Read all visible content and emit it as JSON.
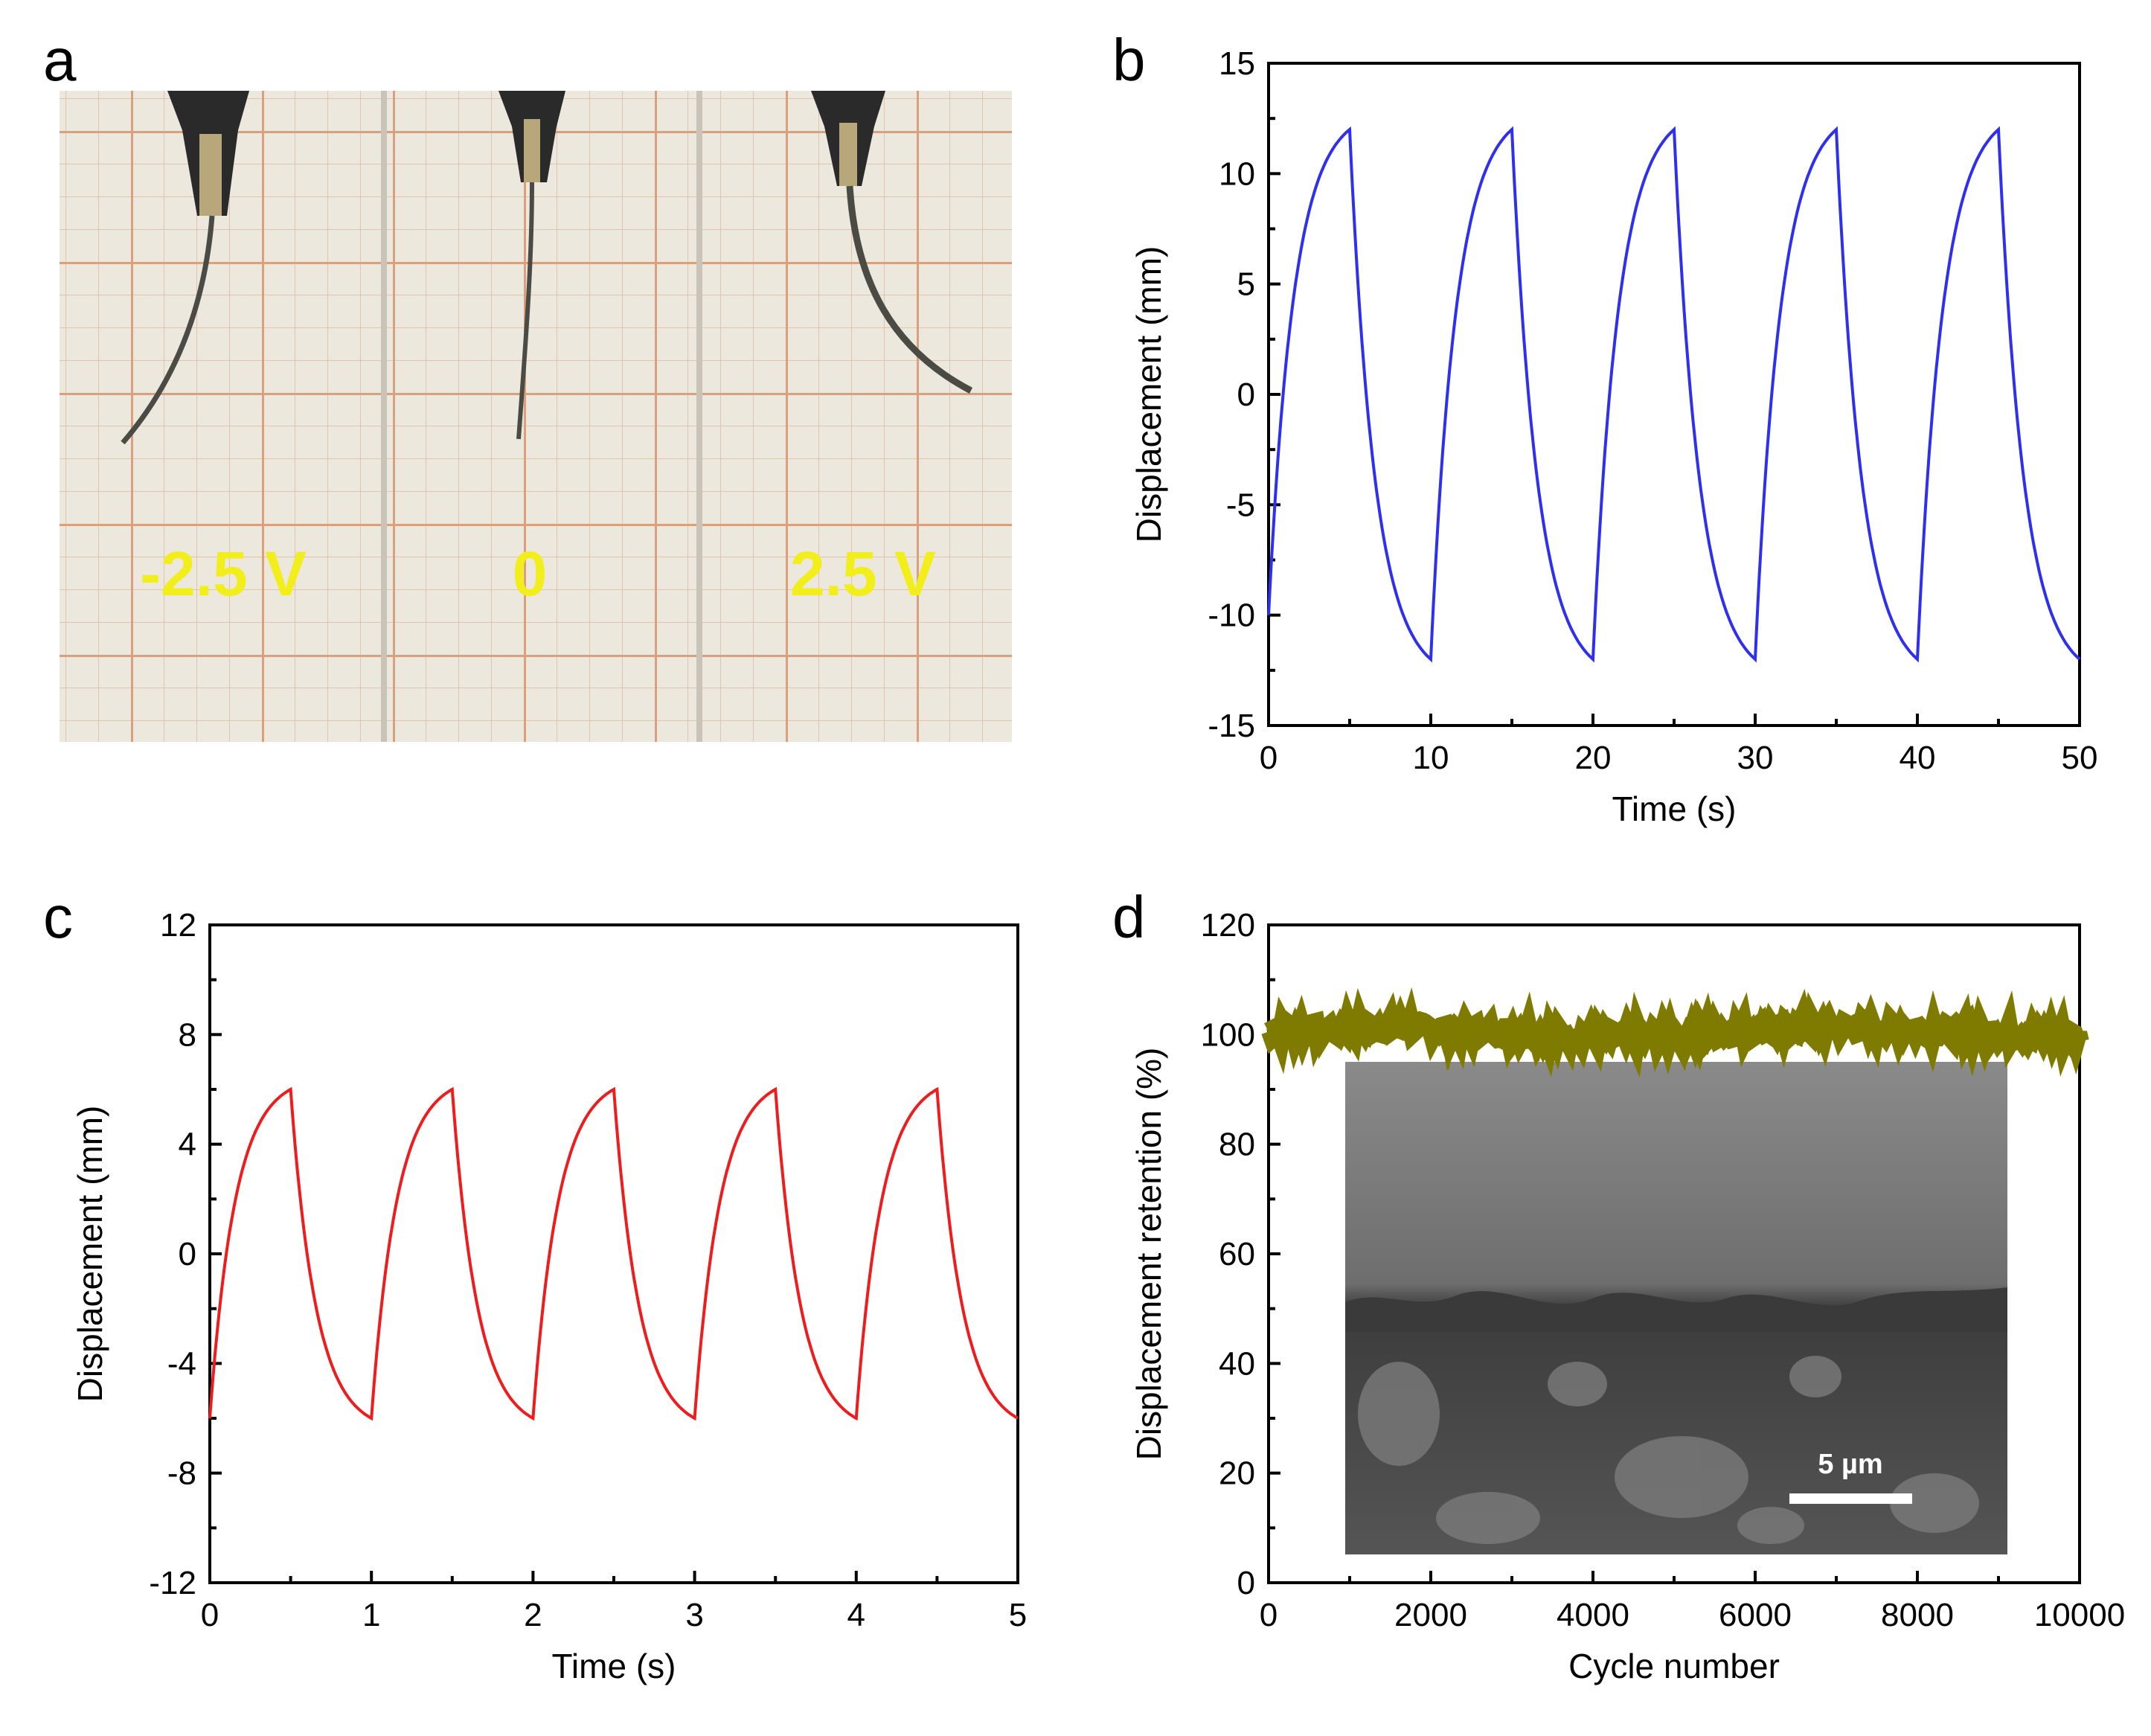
{
  "figure": {
    "panels": [
      "a",
      "b",
      "c",
      "d"
    ]
  },
  "photo": {
    "labels": [
      "-2.5 V",
      "0",
      "2.5 V"
    ],
    "colors": {
      "grid_paper": "#ede8dd",
      "grid_line": "#d9a07a",
      "label": "#f2ee1c",
      "strip": "#4b4b46"
    }
  },
  "chart_data": [
    {
      "panel": "b",
      "type": "line",
      "title": "",
      "xlabel": "Time (s)",
      "ylabel": "Displacement (mm)",
      "xlim": [
        0,
        50
      ],
      "ylim": [
        -15,
        15
      ],
      "xticks": [
        0,
        10,
        20,
        30,
        40,
        50
      ],
      "yticks": [
        -15,
        -10,
        -5,
        0,
        5,
        10,
        15
      ],
      "grid": false,
      "color": "#2f2ff0",
      "series": [
        {
          "name": "Displacement",
          "period": 10,
          "amplitude": 12,
          "start": -10
        }
      ],
      "x": [
        0,
        5,
        10,
        15,
        20,
        25,
        30,
        35,
        40,
        45,
        50
      ],
      "values": [
        -10,
        12,
        -12,
        12,
        -12,
        12,
        -12,
        12,
        -12,
        12,
        -12
      ]
    },
    {
      "panel": "c",
      "type": "line",
      "title": "",
      "xlabel": "Time (s)",
      "ylabel": "Displacement (mm)",
      "xlim": [
        0,
        5
      ],
      "ylim": [
        -12,
        12
      ],
      "xticks": [
        0,
        1,
        2,
        3,
        4,
        5
      ],
      "yticks": [
        -12,
        -8,
        -4,
        0,
        4,
        8,
        12
      ],
      "grid": false,
      "color": "#ee1c1c",
      "series": [
        {
          "name": "Displacement",
          "period": 1,
          "amplitude": 6,
          "start": -6
        }
      ],
      "x": [
        0,
        0.5,
        1,
        1.5,
        2,
        2.5,
        3,
        3.5,
        4,
        4.5,
        5
      ],
      "values": [
        -6,
        6,
        -6,
        6,
        -6,
        6,
        -6,
        6,
        -6,
        6,
        -6
      ]
    },
    {
      "panel": "d",
      "type": "line",
      "title": "",
      "xlabel": "Cycle number",
      "ylabel": "Displacement retention (%)",
      "xlim": [
        0,
        10000
      ],
      "ylim": [
        0,
        120
      ],
      "xticks": [
        0,
        2000,
        4000,
        6000,
        8000,
        10000
      ],
      "yticks": [
        0,
        20,
        40,
        60,
        80,
        100,
        120
      ],
      "grid": false,
      "color": "#7f7a00",
      "series": [
        {
          "name": "Displacement retention",
          "mean": 100.5,
          "spread": 2.5
        }
      ],
      "inset": {
        "type": "SEM image",
        "scale_bar": "5 µm"
      }
    }
  ]
}
